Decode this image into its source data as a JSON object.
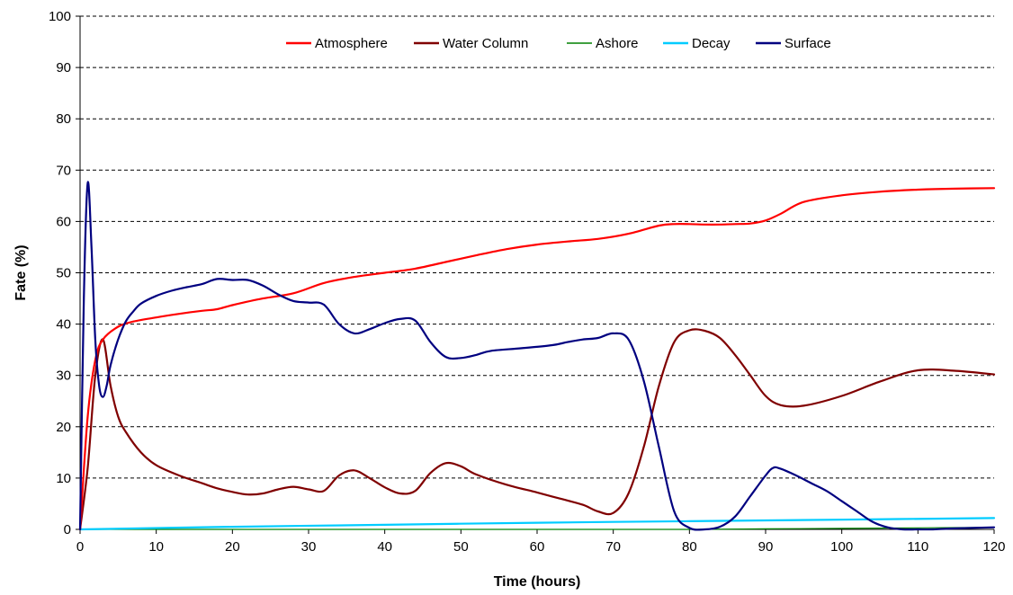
{
  "chart_data": {
    "type": "line",
    "title": "",
    "xlabel": "Time (hours)",
    "ylabel": "Fate (%)",
    "xlim": [
      0,
      120
    ],
    "ylim": [
      0,
      100
    ],
    "xticks": [
      0,
      10,
      20,
      30,
      40,
      50,
      60,
      70,
      80,
      90,
      100,
      110,
      120
    ],
    "yticks": [
      0,
      10,
      20,
      30,
      40,
      50,
      60,
      70,
      80,
      90,
      100
    ],
    "grid": "horizontal dashed",
    "legend_position": "top",
    "series": [
      {
        "name": "Atmosphere",
        "color": "#ff0000",
        "x": [
          0,
          1,
          2,
          3,
          5,
          7,
          10,
          13,
          16,
          18,
          20,
          24,
          28,
          32,
          36,
          40,
          44,
          48,
          52,
          56,
          60,
          64,
          68,
          72,
          76,
          78,
          80,
          82,
          84,
          86,
          88,
          90,
          92,
          95,
          100,
          105,
          110,
          115,
          120
        ],
        "y": [
          0,
          22,
          33,
          37,
          39.5,
          40.5,
          41.3,
          42,
          42.6,
          42.9,
          43.7,
          45,
          46,
          48,
          49.2,
          50,
          50.8,
          52.1,
          53.4,
          54.6,
          55.5,
          56.1,
          56.6,
          57.6,
          59.2,
          59.5,
          59.5,
          59.4,
          59.4,
          59.5,
          59.6,
          60.2,
          61.5,
          63.8,
          65.1,
          65.8,
          66.2,
          66.4,
          66.5
        ]
      },
      {
        "name": "Water Column",
        "color": "#800000",
        "x": [
          0,
          1,
          2,
          3,
          4,
          5,
          6,
          8,
          10,
          13,
          16,
          18,
          20,
          22,
          24,
          26,
          28,
          30,
          32,
          34,
          36,
          38,
          40,
          42,
          44,
          46,
          48,
          50,
          52,
          56,
          60,
          63,
          66,
          68,
          70,
          72,
          74,
          76,
          78,
          80,
          82,
          84,
          86,
          88,
          90,
          92,
          95,
          100,
          105,
          110,
          115,
          120
        ],
        "y": [
          0,
          12,
          30,
          37,
          28,
          22,
          19,
          15,
          12.5,
          10.5,
          9,
          8,
          7.3,
          6.8,
          7,
          7.8,
          8.3,
          7.8,
          7.5,
          10.5,
          11.5,
          10,
          8.2,
          7,
          7.5,
          11,
          12.9,
          12.3,
          10.7,
          8.7,
          7.2,
          6,
          4.8,
          3.5,
          3.2,
          7,
          16,
          28,
          36.5,
          38.8,
          38.7,
          37.3,
          34,
          30,
          26,
          24.2,
          24.1,
          26,
          28.8,
          31,
          30.9,
          30.2
        ]
      },
      {
        "name": "Ashore",
        "color": "#008000",
        "x": [
          0,
          20,
          40,
          60,
          80,
          90,
          100,
          110,
          120
        ],
        "y": [
          0,
          0,
          0,
          0,
          0,
          0.1,
          0.2,
          0.3,
          0.4
        ]
      },
      {
        "name": "Decay",
        "color": "#00ccff",
        "x": [
          0,
          20,
          40,
          60,
          80,
          100,
          120
        ],
        "y": [
          0,
          0.5,
          0.9,
          1.3,
          1.6,
          1.9,
          2.2
        ]
      },
      {
        "name": "Surface",
        "color": "#000080",
        "x": [
          0,
          0.5,
          1,
          1.5,
          2,
          2.5,
          3,
          3.5,
          4,
          5,
          6,
          7,
          8,
          10,
          12,
          14,
          16,
          18,
          20,
          22,
          24,
          26,
          28,
          30,
          32,
          34,
          36,
          38,
          40,
          42,
          44,
          46,
          48,
          50,
          52,
          54,
          58,
          62,
          64,
          66,
          68,
          70,
          72,
          74,
          76,
          78,
          80,
          82,
          84,
          86,
          88,
          90,
          91,
          92,
          94,
          96,
          98,
          100,
          102,
          104,
          106,
          108,
          110,
          112,
          115,
          120
        ],
        "y": [
          0,
          45,
          67.5,
          55,
          37,
          28,
          25.8,
          28,
          32,
          37,
          40.5,
          42.5,
          44,
          45.5,
          46.5,
          47.2,
          47.8,
          48.8,
          48.6,
          48.6,
          47.5,
          45.8,
          44.5,
          44.2,
          43.8,
          40,
          38.2,
          39,
          40.2,
          41,
          40.7,
          36.5,
          33.6,
          33.4,
          34,
          34.8,
          35.3,
          35.9,
          36.5,
          37,
          37.3,
          38.2,
          37,
          29,
          16,
          3.5,
          0.3,
          0,
          0.5,
          2.5,
          6.5,
          10.5,
          12,
          11.8,
          10.5,
          9,
          7.5,
          5.5,
          3.5,
          1.5,
          0.4,
          0,
          0,
          0,
          0.2,
          0.4
        ]
      }
    ]
  }
}
